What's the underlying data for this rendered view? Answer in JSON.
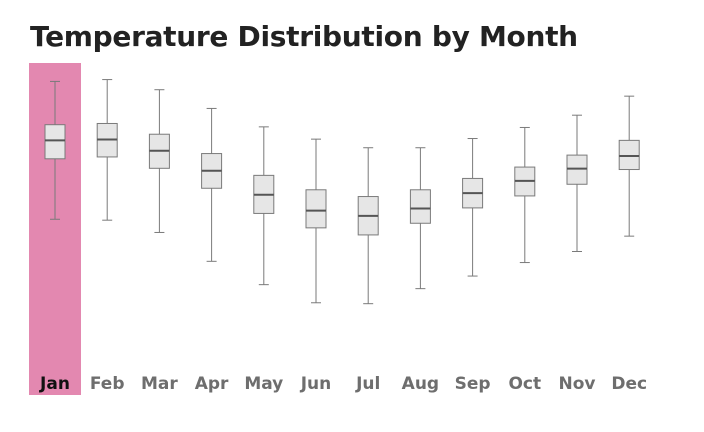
{
  "chart_data": {
    "type": "boxplot",
    "title": "Temperature Distribution by Month",
    "xlabel": "",
    "ylabel": "",
    "categories": [
      "Jan",
      "Feb",
      "Mar",
      "Apr",
      "May",
      "Jun",
      "Jul",
      "Aug",
      "Sep",
      "Oct",
      "Nov",
      "Dec"
    ],
    "selected_category": "Jan",
    "ylim": [
      0,
      100
    ],
    "grid": false,
    "legend": "none",
    "series": [
      {
        "boxes": [
          {
            "min": 49.1,
            "q1": 68.8,
            "median": 74.8,
            "q3": 79.9,
            "max": 94.0
          },
          {
            "min": 48.8,
            "q1": 69.4,
            "median": 75.1,
            "q3": 80.3,
            "max": 94.6
          },
          {
            "min": 44.8,
            "q1": 65.7,
            "median": 71.4,
            "q3": 76.8,
            "max": 91.3
          },
          {
            "min": 35.4,
            "q1": 59.2,
            "median": 64.9,
            "q3": 70.5,
            "max": 85.2
          },
          {
            "min": 27.8,
            "q1": 51.0,
            "median": 57.1,
            "q3": 63.4,
            "max": 79.2
          },
          {
            "min": 21.9,
            "q1": 46.3,
            "median": 51.9,
            "q3": 58.7,
            "max": 75.2
          },
          {
            "min": 21.6,
            "q1": 44.0,
            "median": 50.2,
            "q3": 56.5,
            "max": 72.4
          },
          {
            "min": 26.5,
            "q1": 47.8,
            "median": 52.6,
            "q3": 58.7,
            "max": 72.4
          },
          {
            "min": 30.6,
            "q1": 52.8,
            "median": 57.6,
            "q3": 62.4,
            "max": 75.4
          },
          {
            "min": 35.0,
            "q1": 56.7,
            "median": 61.6,
            "q3": 66.1,
            "max": 79.0
          },
          {
            "min": 38.6,
            "q1": 60.5,
            "median": 65.6,
            "q3": 70.0,
            "max": 83.0
          },
          {
            "min": 43.6,
            "q1": 65.3,
            "median": 69.7,
            "q3": 74.8,
            "max": 89.2
          }
        ]
      }
    ]
  },
  "colors": {
    "highlight": "#e388b0",
    "box_fill": "#e6e6e6",
    "box_stroke": "#7a7a7a",
    "median": "#555555",
    "label": "#6e6e6e",
    "label_selected": "#111111"
  }
}
